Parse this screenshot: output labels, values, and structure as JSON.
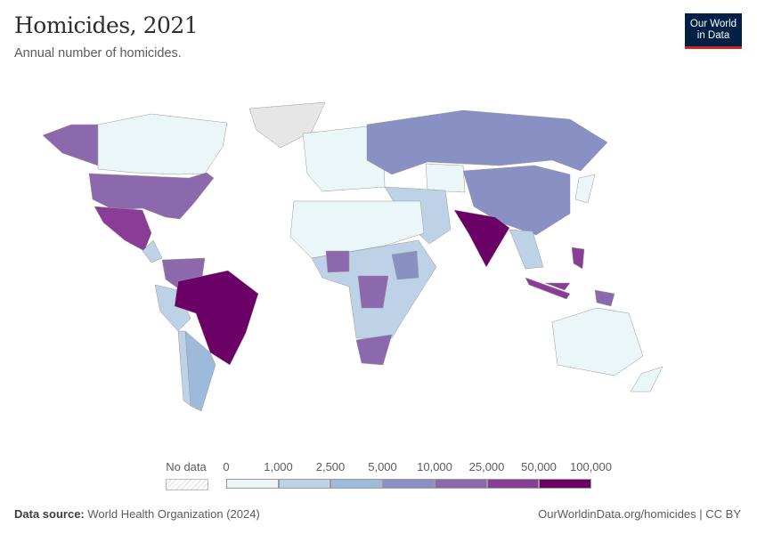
{
  "header": {
    "title": "Homicides, 2021",
    "subtitle": "Annual number of homicides.",
    "logo": {
      "line1": "Our World",
      "line2": "in Data"
    }
  },
  "legend": {
    "no_data_label": "No data",
    "ticks": [
      "0",
      "1,000",
      "2,500",
      "5,000",
      "10,000",
      "25,000",
      "50,000",
      "100,000"
    ],
    "bin_colors": [
      "#ebf6f9",
      "#bdd2e6",
      "#9dbada",
      "#8890c4",
      "#8c68ad",
      "#8a3d97",
      "#6b0066"
    ],
    "no_data_color": "#e6e6e6"
  },
  "footer": {
    "source_label": "Data source:",
    "source": "World Health Organization (2024)",
    "link": "OurWorldinData.org/homicides | CC BY"
  }
}
